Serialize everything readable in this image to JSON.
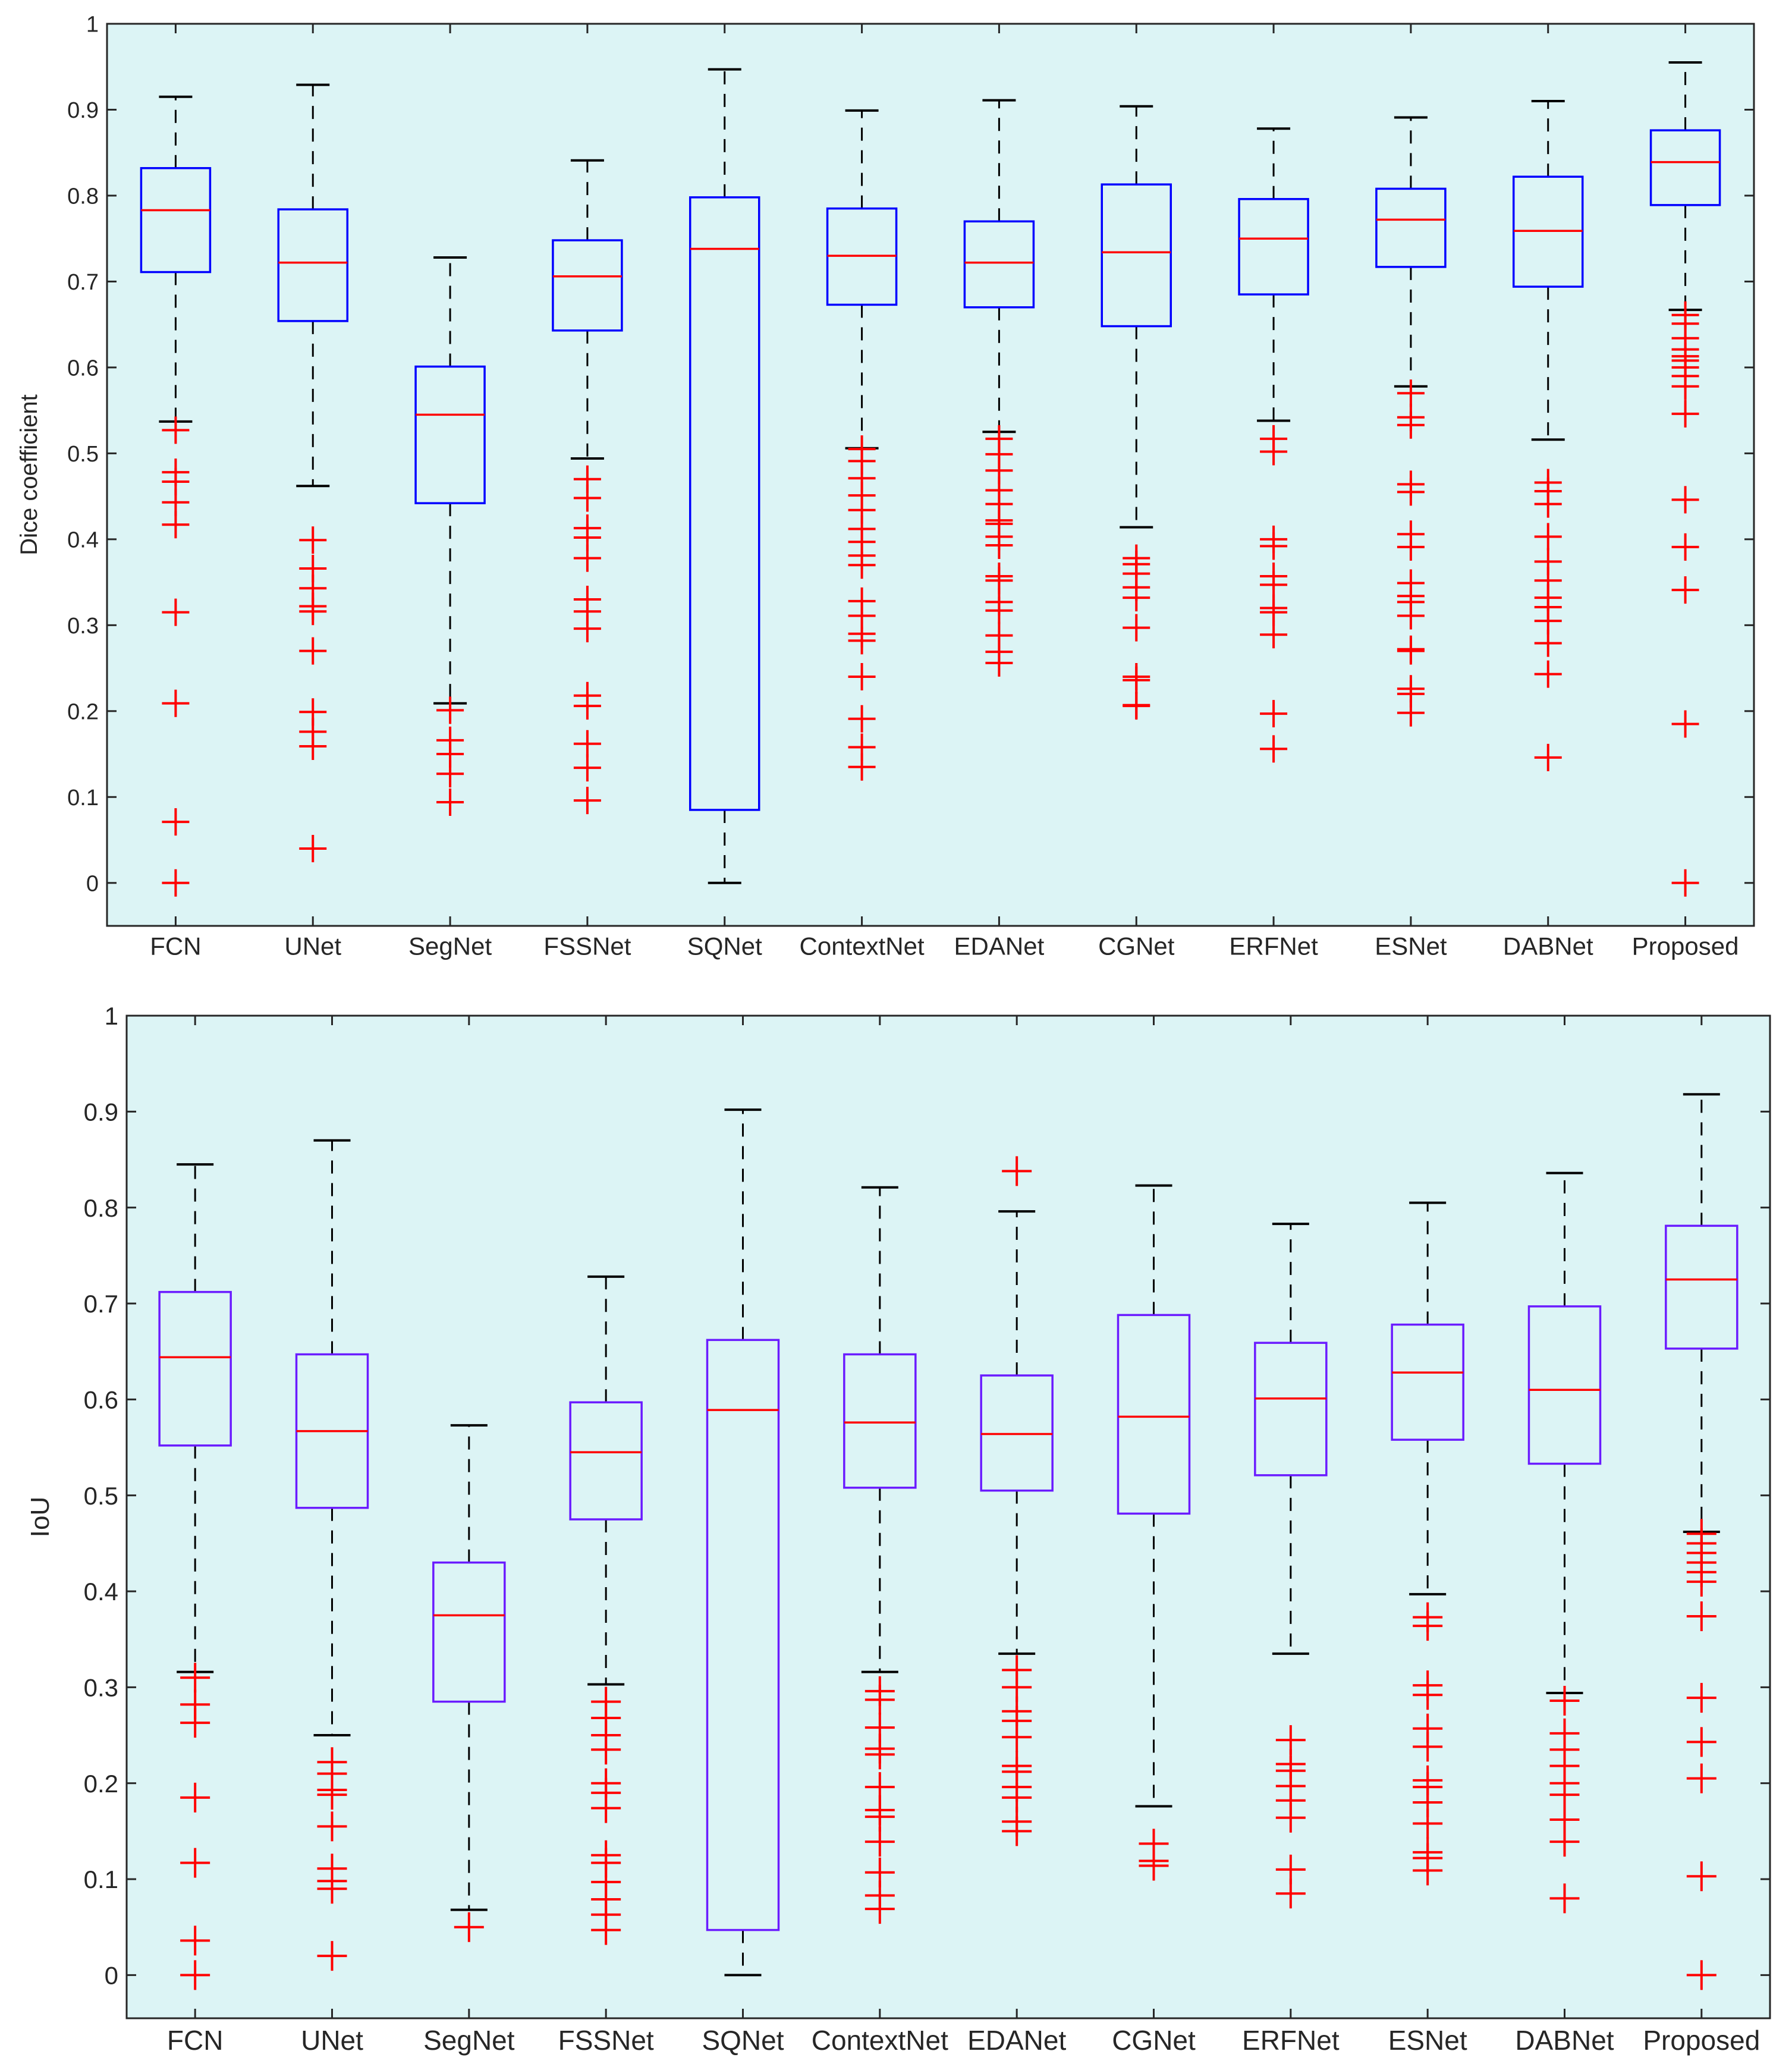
{
  "chart_data": [
    {
      "type": "box",
      "ylabel": "Dice coefficient",
      "ylim": [
        -0.05,
        1
      ],
      "yticks": [
        "0",
        "0.1",
        "0.2",
        "0.3",
        "0.4",
        "0.5",
        "0.6",
        "0.7",
        "0.8",
        "0.9",
        "1"
      ],
      "categories": [
        "FCN",
        "UNet",
        "SegNet",
        "FSSNet",
        "SQNet",
        "ContextNet",
        "EDANet",
        "CGNet",
        "ERFNet",
        "ESNet",
        "DABNet",
        "Proposed"
      ],
      "boxes": [
        {
          "whisker_low": 0.537,
          "q1": 0.711,
          "median": 0.783,
          "q3": 0.832,
          "whisker_high": 0.915,
          "outliers": [
            0.527,
            0.478,
            0.467,
            0.443,
            0.417,
            0.315,
            0.209,
            0.071,
            0.0
          ]
        },
        {
          "whisker_low": 0.462,
          "q1": 0.654,
          "median": 0.722,
          "q3": 0.784,
          "whisker_high": 0.929,
          "outliers": [
            0.399,
            0.366,
            0.343,
            0.322,
            0.316,
            0.27,
            0.199,
            0.176,
            0.159,
            0.04
          ]
        },
        {
          "whisker_low": 0.209,
          "q1": 0.442,
          "median": 0.545,
          "q3": 0.601,
          "whisker_high": 0.728,
          "outliers": [
            0.201,
            0.166,
            0.15,
            0.127,
            0.094
          ]
        },
        {
          "whisker_low": 0.494,
          "q1": 0.643,
          "median": 0.706,
          "q3": 0.748,
          "whisker_high": 0.841,
          "outliers": [
            0.47,
            0.448,
            0.413,
            0.402,
            0.378,
            0.33,
            0.316,
            0.296,
            0.218,
            0.206,
            0.162,
            0.134,
            0.096
          ]
        },
        {
          "whisker_low": 0.0,
          "q1": 0.085,
          "median": 0.738,
          "q3": 0.798,
          "whisker_high": 0.947,
          "outliers": []
        },
        {
          "whisker_low": 0.506,
          "q1": 0.673,
          "median": 0.73,
          "q3": 0.785,
          "whisker_high": 0.899,
          "outliers": [
            0.505,
            0.491,
            0.471,
            0.451,
            0.434,
            0.412,
            0.397,
            0.381,
            0.37,
            0.328,
            0.311,
            0.29,
            0.282,
            0.24,
            0.191,
            0.158,
            0.135
          ]
        },
        {
          "whisker_low": 0.525,
          "q1": 0.67,
          "median": 0.722,
          "q3": 0.77,
          "whisker_high": 0.911,
          "outliers": [
            0.517,
            0.499,
            0.48,
            0.457,
            0.441,
            0.422,
            0.418,
            0.403,
            0.393,
            0.357,
            0.352,
            0.327,
            0.317,
            0.288,
            0.269,
            0.256
          ]
        },
        {
          "whisker_low": 0.414,
          "q1": 0.648,
          "median": 0.734,
          "q3": 0.813,
          "whisker_high": 0.904,
          "outliers": [
            0.378,
            0.371,
            0.36,
            0.344,
            0.332,
            0.297,
            0.24,
            0.236,
            0.207,
            0.206
          ]
        },
        {
          "whisker_low": 0.538,
          "q1": 0.685,
          "median": 0.75,
          "q3": 0.796,
          "whisker_high": 0.878,
          "outliers": [
            0.517,
            0.502,
            0.4,
            0.392,
            0.357,
            0.347,
            0.32,
            0.315,
            0.289,
            0.197,
            0.156
          ]
        },
        {
          "whisker_low": 0.578,
          "q1": 0.717,
          "median": 0.772,
          "q3": 0.808,
          "whisker_high": 0.891,
          "outliers": [
            0.57,
            0.542,
            0.533,
            0.464,
            0.455,
            0.406,
            0.391,
            0.349,
            0.334,
            0.327,
            0.311,
            0.272,
            0.27,
            0.226,
            0.22,
            0.198
          ]
        },
        {
          "whisker_low": 0.516,
          "q1": 0.694,
          "median": 0.759,
          "q3": 0.822,
          "whisker_high": 0.91,
          "outliers": [
            0.466,
            0.456,
            0.441,
            0.403,
            0.374,
            0.352,
            0.332,
            0.321,
            0.305,
            0.279,
            0.243,
            0.146
          ]
        },
        {
          "whisker_low": 0.667,
          "q1": 0.789,
          "median": 0.839,
          "q3": 0.876,
          "whisker_high": 0.955,
          "outliers": [
            0.661,
            0.651,
            0.634,
            0.621,
            0.613,
            0.608,
            0.6,
            0.59,
            0.578,
            0.546,
            0.446,
            0.391,
            0.341,
            0.185,
            0.0
          ]
        }
      ]
    },
    {
      "type": "box",
      "ylabel": "IoU",
      "ylim": [
        -0.045,
        1
      ],
      "yticks": [
        "0",
        "0.1",
        "0.2",
        "0.3",
        "0.4",
        "0.5",
        "0.6",
        "0.7",
        "0.8",
        "0.9",
        "1"
      ],
      "categories": [
        "FCN",
        "UNet",
        "SegNet",
        "FSSNet",
        "SQNet",
        "ContextNet",
        "EDANet",
        "CGNet",
        "ERFNet",
        "ESNet",
        "DABNet",
        "Proposed"
      ],
      "boxes": [
        {
          "whisker_low": 0.316,
          "q1": 0.552,
          "median": 0.644,
          "q3": 0.712,
          "whisker_high": 0.845,
          "outliers": [
            0.31,
            0.282,
            0.263,
            0.185,
            0.117,
            0.036,
            0.0
          ]
        },
        {
          "whisker_low": 0.25,
          "q1": 0.487,
          "median": 0.567,
          "q3": 0.647,
          "whisker_high": 0.87,
          "outliers": [
            0.222,
            0.21,
            0.193,
            0.188,
            0.155,
            0.111,
            0.098,
            0.09,
            0.02
          ]
        },
        {
          "whisker_low": 0.068,
          "q1": 0.285,
          "median": 0.375,
          "q3": 0.43,
          "whisker_high": 0.573,
          "outliers": [
            0.05
          ]
        },
        {
          "whisker_low": 0.303,
          "q1": 0.475,
          "median": 0.545,
          "q3": 0.597,
          "whisker_high": 0.728,
          "outliers": [
            0.285,
            0.268,
            0.25,
            0.235,
            0.2,
            0.19,
            0.174,
            0.125,
            0.117,
            0.097,
            0.079,
            0.063,
            0.047
          ]
        },
        {
          "whisker_low": 0.0,
          "q1": 0.047,
          "median": 0.589,
          "q3": 0.662,
          "whisker_high": 0.902,
          "outliers": []
        },
        {
          "whisker_low": 0.316,
          "q1": 0.508,
          "median": 0.576,
          "q3": 0.647,
          "whisker_high": 0.821,
          "outliers": [
            0.296,
            0.287,
            0.258,
            0.236,
            0.23,
            0.196,
            0.172,
            0.165,
            0.139,
            0.107,
            0.083,
            0.069
          ]
        },
        {
          "whisker_low": 0.335,
          "q1": 0.505,
          "median": 0.564,
          "q3": 0.625,
          "whisker_high": 0.796,
          "outliers": [
            0.838,
            0.318,
            0.3,
            0.275,
            0.265,
            0.248,
            0.218,
            0.212,
            0.196,
            0.185,
            0.16,
            0.15
          ]
        },
        {
          "whisker_low": 0.176,
          "q1": 0.481,
          "median": 0.582,
          "q3": 0.688,
          "whisker_high": 0.823,
          "outliers": [
            0.137,
            0.119,
            0.114
          ]
        },
        {
          "whisker_low": 0.335,
          "q1": 0.521,
          "median": 0.601,
          "q3": 0.659,
          "whisker_high": 0.783,
          "outliers": [
            0.245,
            0.22,
            0.213,
            0.197,
            0.182,
            0.164,
            0.11,
            0.085
          ]
        },
        {
          "whisker_low": 0.397,
          "q1": 0.558,
          "median": 0.628,
          "q3": 0.678,
          "whisker_high": 0.805,
          "outliers": [
            0.373,
            0.364,
            0.302,
            0.292,
            0.257,
            0.238,
            0.203,
            0.196,
            0.18,
            0.158,
            0.128,
            0.122,
            0.109
          ]
        },
        {
          "whisker_low": 0.294,
          "q1": 0.533,
          "median": 0.61,
          "q3": 0.697,
          "whisker_high": 0.836,
          "outliers": [
            0.286,
            0.252,
            0.235,
            0.218,
            0.2,
            0.188,
            0.162,
            0.139,
            0.08
          ]
        },
        {
          "whisker_low": 0.462,
          "q1": 0.653,
          "median": 0.725,
          "q3": 0.781,
          "whisker_high": 0.918,
          "outliers": [
            0.46,
            0.45,
            0.44,
            0.43,
            0.42,
            0.41,
            0.374,
            0.289,
            0.243,
            0.205,
            0.103,
            0.0
          ]
        }
      ]
    }
  ],
  "colors": {
    "plot_background": "#dcf4f5",
    "box_top": "#0000ff",
    "box_bottom": "#6a1bff",
    "median": "#ff0000",
    "whisker": "#000000",
    "outlier": "#ff0000"
  }
}
